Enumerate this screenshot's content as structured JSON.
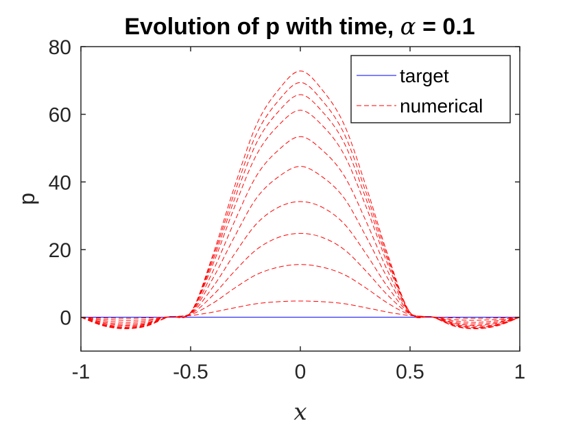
{
  "chart_data": {
    "type": "line",
    "title": "Evolution of p with time, ",
    "title_symbol": "α",
    "title_suffix": " = 0.1",
    "xlabel": "x",
    "ylabel": "p",
    "xlim": [
      -1,
      1
    ],
    "ylim": [
      -10,
      80
    ],
    "xticks": [
      -1,
      -0.5,
      0,
      0.5,
      1
    ],
    "xtick_labels": [
      "-1",
      "-0.5",
      "0",
      "0.5",
      "1"
    ],
    "yticks": [
      0,
      20,
      40,
      60,
      80
    ],
    "ytick_labels": [
      "0",
      "20",
      "40",
      "60",
      "80"
    ],
    "grid": false,
    "legend_position": "top-right",
    "legend": [
      {
        "label": "target",
        "color": "#0000ff",
        "style": "solid"
      },
      {
        "label": "numerical",
        "color": "#ff0000",
        "style": "dashed"
      }
    ],
    "target": {
      "x": [
        -1,
        1
      ],
      "y": [
        0,
        0
      ],
      "color": "#0000ff"
    },
    "numerical": {
      "color": "#ff0000",
      "x": [
        -1,
        -0.9,
        -0.8,
        -0.7,
        -0.6,
        -0.5,
        -0.4,
        -0.3,
        -0.2,
        -0.1,
        0,
        0.1,
        0.2,
        0.3,
        0.4,
        0.5,
        0.6,
        0.7,
        0.8,
        0.9,
        1
      ],
      "curves": [
        [
          0,
          -0.2,
          -0.3,
          -0.2,
          0.1,
          0.5,
          1.5,
          2.8,
          4.0,
          4.6,
          4.8,
          4.6,
          4.0,
          2.8,
          1.5,
          0.5,
          0.1,
          -0.2,
          -0.3,
          -0.2,
          0
        ],
        [
          0,
          -0.6,
          -0.9,
          -0.7,
          0.1,
          0.8,
          4.1,
          8.6,
          12.6,
          14.8,
          15.6,
          14.8,
          12.6,
          8.6,
          4.1,
          0.8,
          0.1,
          -0.7,
          -0.9,
          -0.6,
          0
        ],
        [
          0,
          -1.0,
          -1.5,
          -1.1,
          0.1,
          1.0,
          6.4,
          13.6,
          20.0,
          23.6,
          24.8,
          23.6,
          20.0,
          13.6,
          6.4,
          1.0,
          0.1,
          -1.1,
          -1.5,
          -1.0,
          0
        ],
        [
          0,
          -1.4,
          -2.0,
          -1.5,
          0.1,
          1.1,
          8.8,
          18.7,
          27.6,
          32.5,
          34.2,
          32.5,
          27.6,
          18.7,
          8.8,
          1.1,
          0.1,
          -1.5,
          -2.0,
          -1.4,
          0
        ],
        [
          0,
          -1.7,
          -2.4,
          -1.8,
          0.1,
          1.2,
          11.3,
          23.8,
          35.2,
          41.5,
          44.6,
          41.5,
          35.2,
          23.8,
          11.3,
          1.2,
          0.1,
          -1.8,
          -2.4,
          -1.7,
          0
        ],
        [
          0,
          -2.0,
          -2.7,
          -2.0,
          0.1,
          1.3,
          13.4,
          28.3,
          41.8,
          49.4,
          53.4,
          49.4,
          41.8,
          28.3,
          13.4,
          1.3,
          0.1,
          -2.0,
          -2.7,
          -2.0,
          0
        ],
        [
          0,
          -2.2,
          -3.0,
          -2.2,
          0.1,
          1.4,
          15.4,
          32.6,
          48.0,
          56.7,
          61.2,
          56.7,
          48.0,
          32.6,
          15.4,
          1.4,
          0.1,
          -2.2,
          -3.0,
          -2.2,
          0
        ],
        [
          0,
          -2.3,
          -3.2,
          -2.4,
          0.1,
          1.4,
          16.5,
          34.9,
          51.5,
          60.8,
          65.8,
          60.8,
          51.5,
          34.9,
          16.5,
          1.4,
          0.1,
          -2.4,
          -3.2,
          -2.3,
          0
        ],
        [
          0,
          -2.4,
          -3.3,
          -2.5,
          0.1,
          1.4,
          17.4,
          36.8,
          54.2,
          64.0,
          69.4,
          64.0,
          54.2,
          36.8,
          17.4,
          1.4,
          0.1,
          -2.5,
          -3.3,
          -2.4,
          0
        ],
        [
          0,
          -2.5,
          -3.4,
          -2.6,
          0.1,
          1.4,
          18.2,
          38.6,
          56.9,
          67.2,
          72.8,
          67.2,
          56.9,
          38.6,
          18.2,
          1.4,
          0.1,
          -2.6,
          -3.4,
          -2.5,
          0
        ]
      ]
    }
  }
}
